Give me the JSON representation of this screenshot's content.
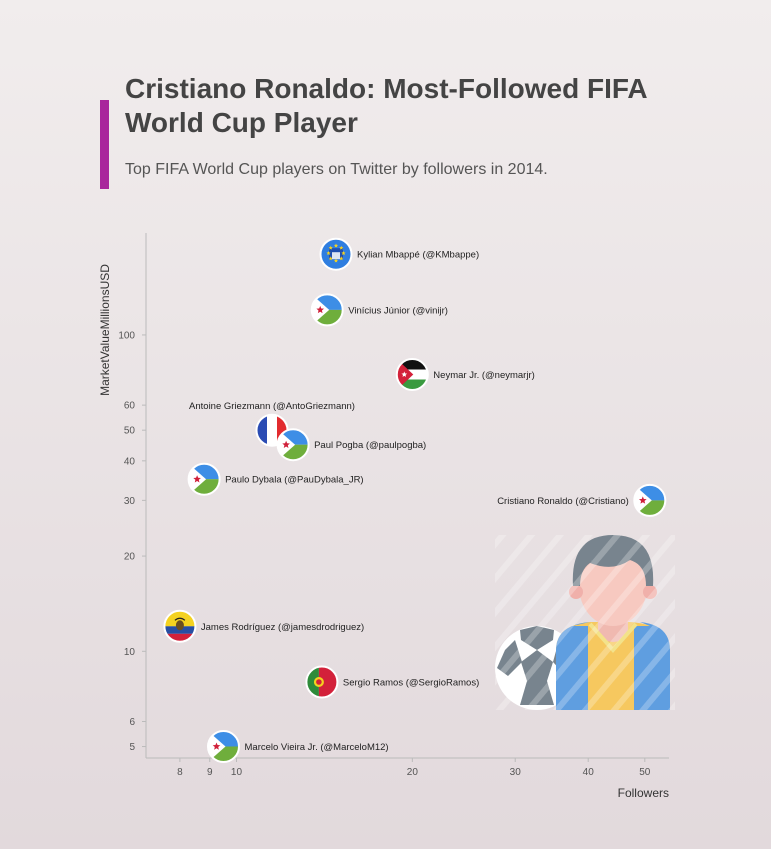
{
  "header": {
    "title": "Cristiano Ronaldo: Most-Followed FIFA World Cup Player",
    "subtitle": "Top FIFA World Cup players on Twitter by followers in 2014."
  },
  "colors": {
    "accent": "#a9269c",
    "axis": "#bbbbbb",
    "text": "#444444"
  },
  "chart_data": {
    "type": "scatter",
    "title": "Cristiano Ronaldo: Most-Followed FIFA World Cup Player",
    "subtitle": "Top FIFA World Cup players on Twitter by followers in 2014.",
    "xlabel": "Followers",
    "ylabel": "MarketValueMillionsUSD",
    "x_scale": "log",
    "y_scale": "log",
    "xlim": [
      7,
      55
    ],
    "ylim": [
      4.6,
      210
    ],
    "x_ticks": [
      8,
      9,
      10,
      20,
      30,
      40,
      50
    ],
    "y_ticks": [
      5,
      6,
      10,
      20,
      30,
      40,
      50,
      60,
      100
    ],
    "grid": false,
    "points": [
      {
        "label": "Kylian Mbappé (@KMbappe)",
        "x": 14.8,
        "y": 180,
        "flag": "blue-star-flag",
        "label_side": "right"
      },
      {
        "label": "Vinícius Júnior (@vinijr)",
        "x": 14.3,
        "y": 120,
        "flag": "djibouti-flag",
        "label_side": "right"
      },
      {
        "label": "Neymar Jr. (@neymarjr)",
        "x": 20.0,
        "y": 75,
        "flag": "jordan-flag",
        "label_side": "right"
      },
      {
        "label": "Antoine Griezmann (@AntoGriezmann)",
        "x": 11.5,
        "y": 50,
        "flag": "france-flag",
        "label_side": "top"
      },
      {
        "label": "Paul Pogba (@paulpogba)",
        "x": 12.5,
        "y": 45,
        "flag": "djibouti-flag",
        "label_side": "right"
      },
      {
        "label": "Paulo Dybala (@PauDybala_JR)",
        "x": 8.8,
        "y": 35,
        "flag": "djibouti-flag",
        "label_side": "right"
      },
      {
        "label": "Cristiano Ronaldo (@Cristiano)",
        "x": 51.0,
        "y": 30,
        "flag": "djibouti-flag",
        "label_side": "left"
      },
      {
        "label": "James Rodríguez (@jamesdrodriguez)",
        "x": 8.0,
        "y": 12,
        "flag": "ecuador-flag",
        "label_side": "right"
      },
      {
        "label": "Sergio Ramos (@SergioRamos)",
        "x": 14.0,
        "y": 8,
        "flag": "portugal-flag",
        "label_side": "right"
      },
      {
        "label": "Marcelo Vieira Jr. (@MarceloM12)",
        "x": 9.5,
        "y": 5,
        "flag": "djibouti-flag",
        "label_side": "right"
      }
    ]
  }
}
